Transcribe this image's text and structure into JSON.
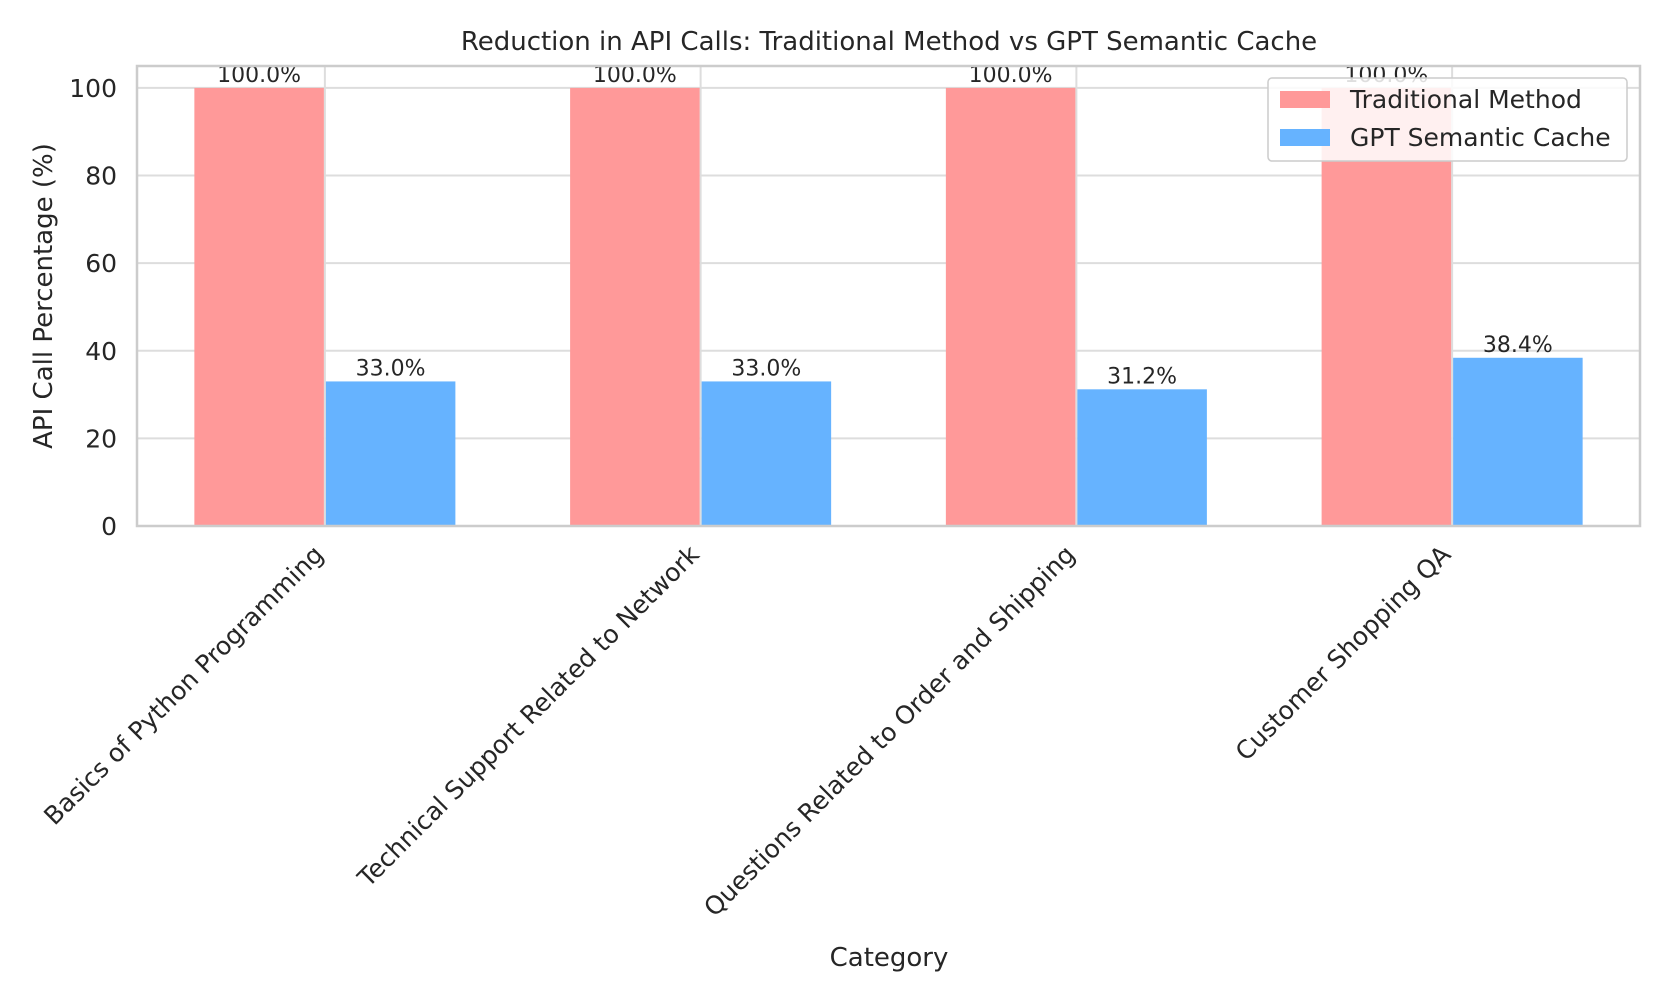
{
  "chart_data": {
    "type": "bar",
    "title": "Reduction in API Calls: Traditional Method vs GPT Semantic Cache",
    "xlabel": "Category",
    "ylabel": "API Call Percentage (%)",
    "ylim": [
      0,
      105
    ],
    "yticks": [
      0,
      20,
      40,
      60,
      80,
      100
    ],
    "grid": true,
    "legend_position": "top-right",
    "categories": [
      "Basics of Python Programming",
      "Technical Support Related to Network",
      "Questions Related to Order and Shipping",
      "Customer Shopping QA"
    ],
    "series": [
      {
        "name": "Traditional Method",
        "color": "#ff9999",
        "values": [
          100.0,
          100.0,
          100.0,
          100.0
        ],
        "labels": [
          "100.0%",
          "100.0%",
          "100.0%",
          "100.0%"
        ]
      },
      {
        "name": "GPT Semantic Cache",
        "color": "#66b3ff",
        "values": [
          33.0,
          33.0,
          31.2,
          38.4
        ],
        "labels": [
          "33.0%",
          "33.0%",
          "31.2%",
          "38.4%"
        ]
      }
    ]
  }
}
